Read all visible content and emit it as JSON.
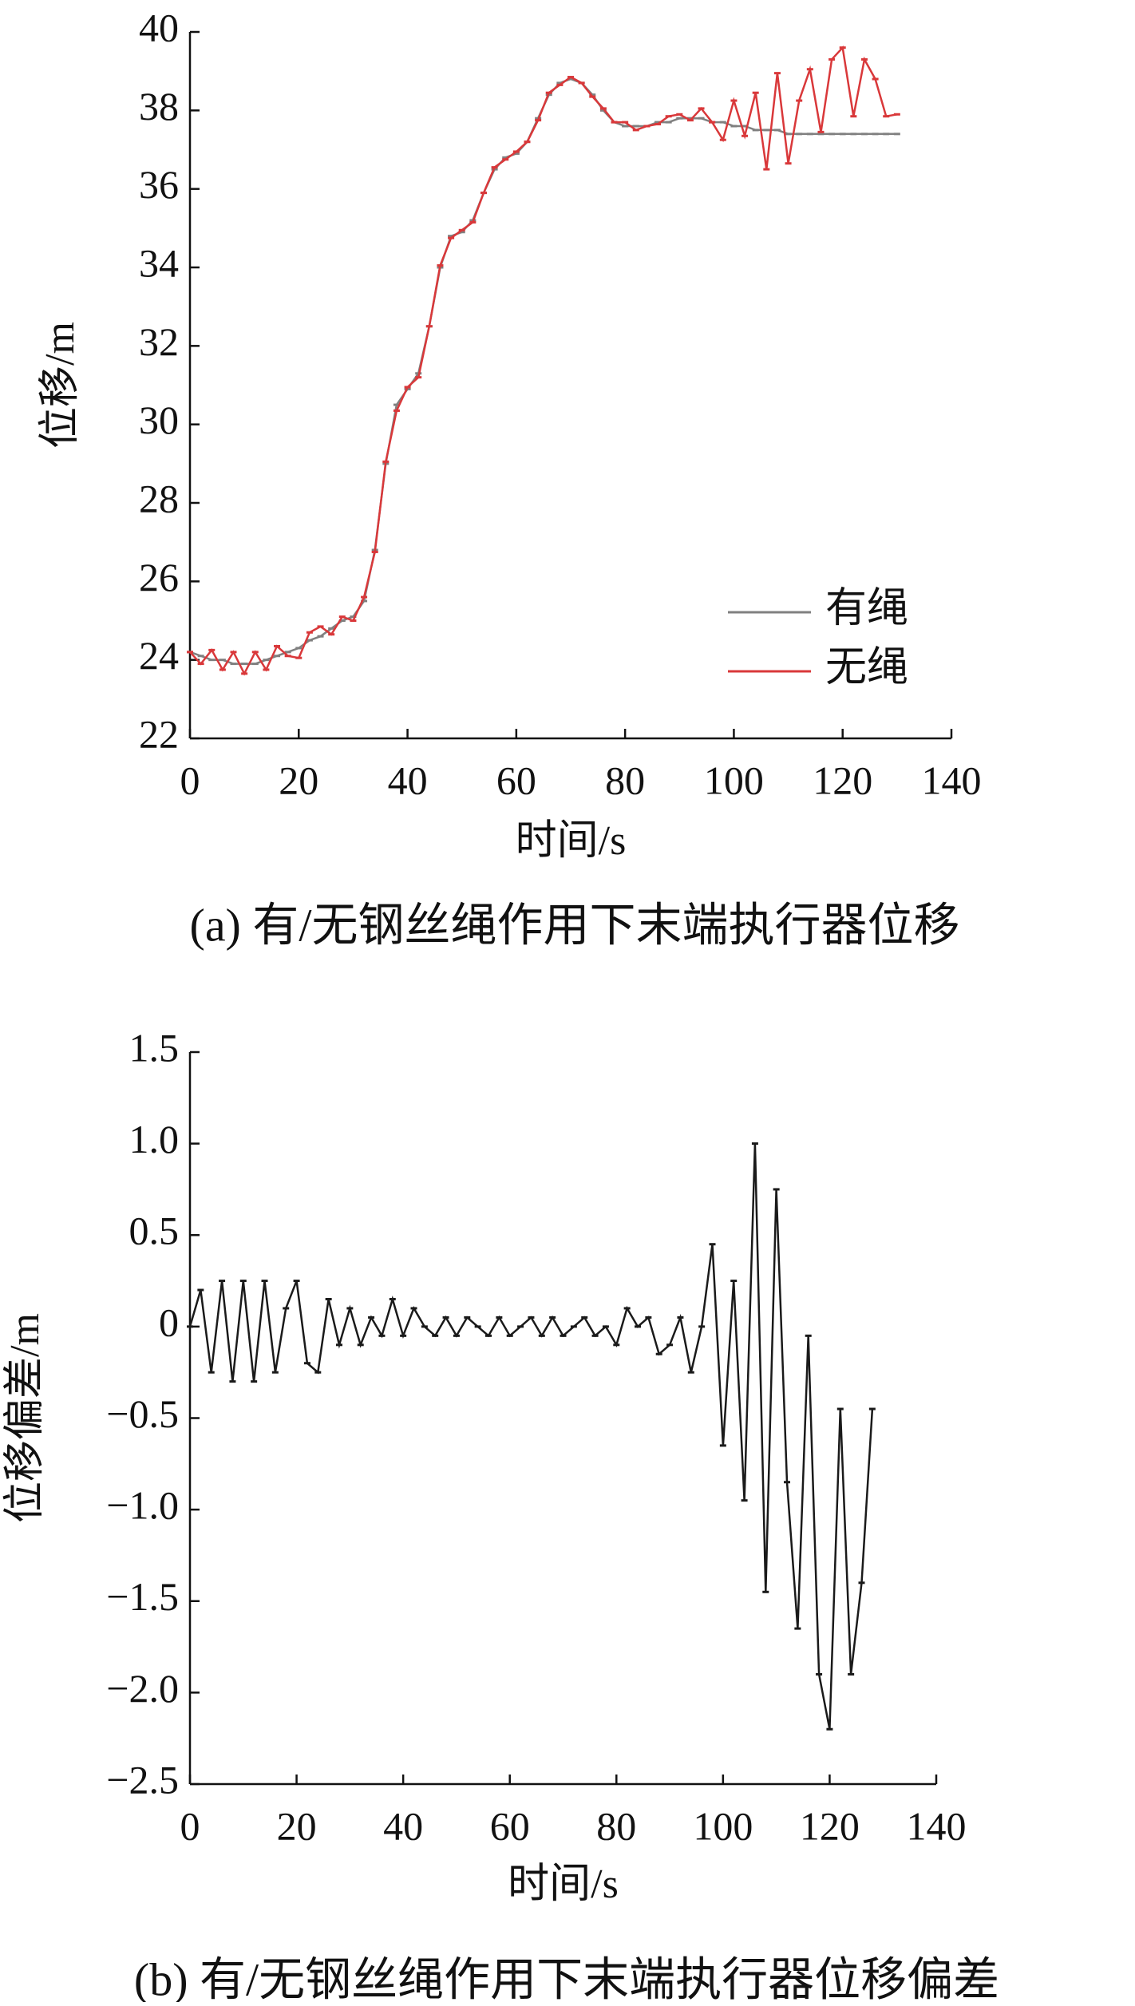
{
  "chart_data": [
    {
      "type": "line",
      "title": "(a) 有/无钢丝绳作用下末端执行器位移",
      "x_label": "时间/s",
      "y_label": "位移/m",
      "x": [
        0,
        2,
        4,
        6,
        8,
        10,
        12,
        14,
        16,
        18,
        20,
        22,
        24,
        26,
        28,
        30,
        32,
        34,
        36,
        38,
        40,
        42,
        44,
        46,
        48,
        50,
        52,
        54,
        56,
        58,
        60,
        62,
        64,
        66,
        68,
        70,
        72,
        74,
        76,
        78,
        80,
        82,
        84,
        86,
        88,
        90,
        92,
        94,
        96,
        98,
        100,
        102,
        104,
        106,
        108,
        110,
        112,
        114,
        116,
        118,
        120,
        122,
        124,
        126,
        128,
        130
      ],
      "series": [
        {
          "name": "有绳",
          "color": "#808080",
          "values": [
            24.2,
            24.1,
            24.0,
            24.0,
            23.9,
            23.9,
            23.9,
            24.0,
            24.1,
            24.2,
            24.3,
            24.5,
            24.6,
            24.8,
            25.0,
            25.1,
            25.5,
            26.8,
            29.0,
            30.5,
            30.9,
            31.3,
            32.5,
            34.0,
            34.8,
            34.9,
            35.2,
            35.9,
            36.5,
            36.8,
            36.9,
            37.2,
            37.8,
            38.4,
            38.7,
            38.8,
            38.7,
            38.4,
            38.0,
            37.7,
            37.6,
            37.6,
            37.6,
            37.7,
            37.7,
            37.8,
            37.8,
            37.8,
            37.7,
            37.7,
            37.6,
            37.6,
            37.5,
            37.5,
            37.5,
            37.4,
            37.4,
            37.4,
            37.4,
            37.4,
            37.4,
            37.4,
            37.4,
            37.4,
            37.4,
            37.4
          ]
        },
        {
          "name": "无绳",
          "color": "#d9383a",
          "values": [
            24.2,
            23.9,
            24.25,
            23.75,
            24.2,
            23.65,
            24.2,
            23.75,
            24.35,
            24.1,
            24.05,
            24.7,
            24.85,
            24.65,
            25.1,
            25.0,
            25.6,
            26.75,
            29.05,
            30.35,
            30.95,
            31.2,
            32.5,
            34.05,
            34.75,
            34.95,
            35.15,
            35.9,
            36.55,
            36.75,
            36.95,
            37.2,
            37.75,
            38.45,
            38.65,
            38.85,
            38.7,
            38.35,
            38.05,
            37.7,
            37.7,
            37.5,
            37.6,
            37.65,
            37.85,
            37.9,
            37.75,
            38.05,
            37.7,
            37.25,
            38.25,
            37.35,
            38.45,
            36.5,
            38.95,
            36.65,
            38.25,
            39.05,
            37.45,
            39.3,
            39.6,
            37.85,
            39.3,
            38.8,
            37.85,
            37.9
          ]
        }
      ],
      "xlim": [
        0,
        140
      ],
      "xticks": [
        0,
        20,
        40,
        60,
        80,
        100,
        120,
        140
      ],
      "ylim": [
        22,
        40
      ],
      "yticks": [
        22,
        24,
        26,
        28,
        30,
        32,
        34,
        36,
        38,
        40
      ],
      "legend": "lower right"
    },
    {
      "type": "line",
      "title": "(b) 有/无钢丝绳作用下末端执行器位移偏差",
      "x_label": "时间/s",
      "y_label": "位移偏差/m",
      "x": [
        0,
        2,
        4,
        6,
        8,
        10,
        12,
        14,
        16,
        18,
        20,
        22,
        24,
        26,
        28,
        30,
        32,
        34,
        36,
        38,
        40,
        42,
        44,
        46,
        48,
        50,
        52,
        54,
        56,
        58,
        60,
        62,
        64,
        66,
        68,
        70,
        72,
        74,
        76,
        78,
        80,
        82,
        84,
        86,
        88,
        90,
        92,
        94,
        96,
        98,
        100,
        102,
        104,
        106,
        108,
        110,
        112,
        114,
        116,
        118,
        120,
        122,
        124,
        126,
        128
      ],
      "series": [
        {
          "color": "#1a1a1a",
          "values": [
            0,
            0.2,
            -0.25,
            0.25,
            -0.3,
            0.25,
            -0.3,
            0.25,
            -0.25,
            0.1,
            0.25,
            -0.2,
            -0.25,
            0.15,
            -0.1,
            0.1,
            -0.1,
            0.05,
            -0.05,
            0.15,
            -0.05,
            0.1,
            0,
            -0.05,
            0.05,
            -0.05,
            0.05,
            0,
            -0.05,
            0.05,
            -0.05,
            0,
            0.05,
            -0.05,
            0.05,
            -0.05,
            0,
            0.05,
            -0.05,
            0,
            -0.1,
            0.1,
            0,
            0.05,
            -0.15,
            -0.1,
            0.05,
            -0.25,
            0,
            0.45,
            -0.65,
            0.25,
            -0.95,
            1.0,
            -1.45,
            0.75,
            -0.85,
            -1.65,
            -0.05,
            -1.9,
            -2.2,
            -0.45,
            -1.9,
            -1.4,
            -0.45
          ]
        }
      ],
      "xlim": [
        0,
        140
      ],
      "xticks": [
        0,
        20,
        40,
        60,
        80,
        100,
        120,
        140
      ],
      "ylim": [
        -2.5,
        1.5
      ],
      "yticks": [
        {
          "value": -2.5,
          "label": "−2.5"
        },
        {
          "value": -2,
          "label": "−2.0"
        },
        {
          "value": -1.5,
          "label": "−1.5"
        },
        {
          "value": -1,
          "label": "−1.0"
        },
        {
          "value": -0.5,
          "label": "−0.5"
        },
        0,
        0.5,
        {
          "value": 1,
          "label": "1.0"
        },
        1.5
      ]
    }
  ]
}
